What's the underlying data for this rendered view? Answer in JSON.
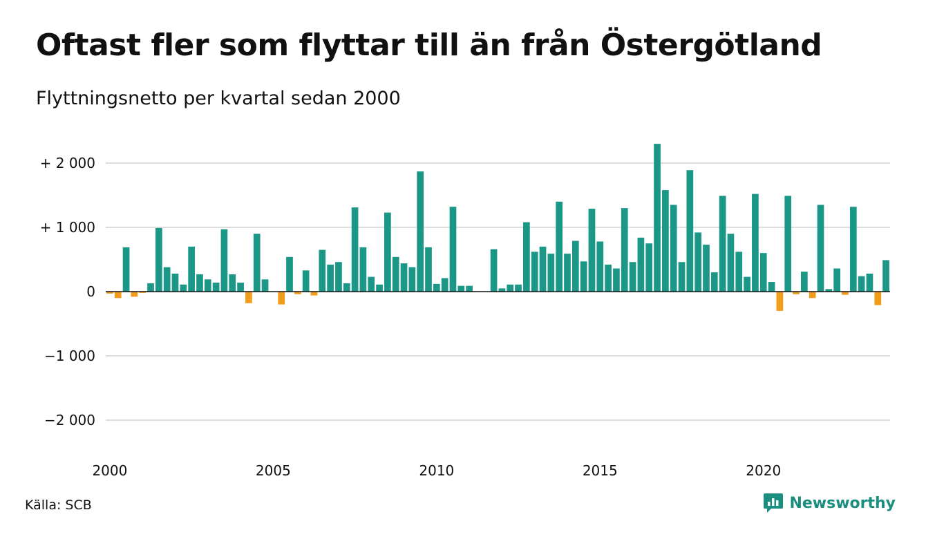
{
  "title": "Oftast fler som flyttar till än från Östergötland",
  "subtitle": "Flyttningsnetto per kvartal sedan 2000",
  "source": "Källa: SCB",
  "brand": {
    "name": "Newsworthy",
    "icon": "newsworthy-logo-icon"
  },
  "colors": {
    "positive": "#1a9786",
    "negative": "#f39c1a",
    "grid": "#dddddd",
    "zero": "#111111"
  },
  "chart_data": {
    "type": "bar",
    "title": "Oftast fler som flyttar till än från Östergötland",
    "subtitle": "Flyttningsnetto per kvartal sedan 2000",
    "xlabel": "",
    "ylabel": "",
    "ylim": [
      -2500,
      2400
    ],
    "grid": true,
    "x_start": 2000,
    "x_step": 0.25,
    "x_ticks": [
      2000,
      2005,
      2010,
      2015,
      2020
    ],
    "x_tick_labels": [
      "2000",
      "2005",
      "2010",
      "2015",
      "2020"
    ],
    "y_ticks": [
      2000,
      1000,
      0,
      -1000,
      -2000
    ],
    "y_tick_labels": [
      "+ 2 000",
      "+ 1 000",
      "0",
      "−1 000",
      "−2 000"
    ],
    "values": [
      -30,
      -100,
      690,
      -80,
      -20,
      130,
      990,
      380,
      280,
      110,
      700,
      270,
      190,
      140,
      970,
      270,
      140,
      -180,
      900,
      190,
      0,
      -200,
      540,
      -40,
      330,
      -60,
      650,
      420,
      460,
      130,
      1310,
      690,
      230,
      110,
      1230,
      540,
      440,
      380,
      1870,
      690,
      120,
      210,
      1320,
      90,
      90,
      0,
      0,
      660,
      50,
      110,
      110,
      1080,
      620,
      700,
      590,
      1400,
      590,
      790,
      470,
      1290,
      780,
      420,
      360,
      1300,
      460,
      840,
      750,
      2300,
      1580,
      1350,
      460,
      1890,
      920,
      730,
      300,
      1490,
      900,
      620,
      230,
      1520,
      600,
      150,
      -300,
      1490,
      -40,
      310,
      -100,
      1350,
      40,
      360,
      -50,
      1320,
      240,
      280,
      -210,
      490
    ]
  }
}
